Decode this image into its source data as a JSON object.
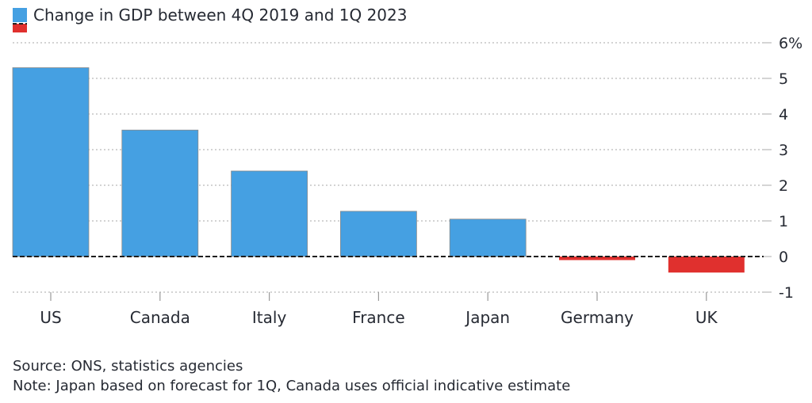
{
  "chart_data": {
    "type": "bar",
    "legend": [
      {
        "label": "Change in GDP between 4Q 2019 and 1Q 2023",
        "color": "#45a0e2"
      },
      {
        "label": "",
        "color": "#e0302e"
      }
    ],
    "categories": [
      "US",
      "Canada",
      "Italy",
      "France",
      "Japan",
      "Germany",
      "UK"
    ],
    "values": [
      5.3,
      3.55,
      2.4,
      1.27,
      1.05,
      -0.1,
      -0.45
    ],
    "ylim": [
      -1,
      6
    ],
    "yticks": [
      6,
      5,
      4,
      3,
      2,
      1,
      0,
      -1
    ],
    "ytick_labels": [
      "6%",
      "5",
      "4",
      "3",
      "2",
      "1",
      "0",
      "-1"
    ],
    "positive_color": "#45a0e2",
    "negative_color": "#e0302e",
    "grid": true,
    "legend_position": "top-left",
    "y_axis_position": "right"
  },
  "footer": {
    "source": "Source: ONS, statistics agencies",
    "note": "Note: Japan based on forecast for 1Q, Canada uses official indicative estimate"
  }
}
